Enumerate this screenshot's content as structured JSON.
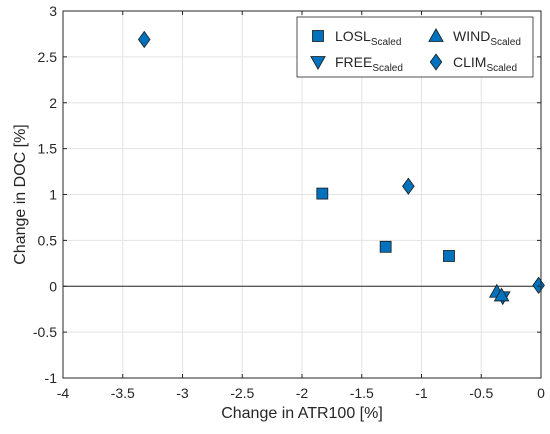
{
  "chart_data": {
    "type": "scatter",
    "title": "",
    "xlabel": "Change in ATR100 [%]",
    "ylabel": "Change in DOC [%]",
    "xlim": [
      -4,
      0
    ],
    "ylim": [
      -1,
      3
    ],
    "xticks": [
      -4,
      -3.5,
      -3,
      -2.5,
      -2,
      -1.5,
      -1,
      -0.5,
      0
    ],
    "yticks": [
      -1,
      -0.5,
      0,
      0.5,
      1,
      1.5,
      2,
      2.5,
      3
    ],
    "xtick_labels": [
      "-4",
      "-3.5",
      "-3",
      "-2.5",
      "-2",
      "-1.5",
      "-1",
      "-0.5",
      "0"
    ],
    "ytick_labels": [
      "-1",
      "-0.5",
      "0",
      "0.5",
      "1",
      "1.5",
      "2",
      "2.5",
      "3"
    ],
    "grid": true,
    "zero_line": true,
    "legend_position": "top-right",
    "marker_color": "#0072BD",
    "series": [
      {
        "name": "LOSL",
        "subscript": "Scaled",
        "marker": "square",
        "x": [
          -1.83,
          -1.3,
          -0.77
        ],
        "y": [
          1.01,
          0.43,
          0.33
        ]
      },
      {
        "name": "FREE",
        "subscript": "Scaled",
        "marker": "triangle-down",
        "x": [
          -0.32
        ],
        "y": [
          -0.12
        ]
      },
      {
        "name": "WIND",
        "subscript": "Scaled",
        "marker": "triangle-up",
        "x": [
          -0.37,
          -0.33
        ],
        "y": [
          -0.06,
          -0.1
        ]
      },
      {
        "name": "CLIM",
        "subscript": "Scaled",
        "marker": "diamond",
        "x": [
          -3.32,
          -1.11,
          -0.02
        ],
        "y": [
          2.69,
          1.09,
          0.01
        ]
      }
    ]
  }
}
